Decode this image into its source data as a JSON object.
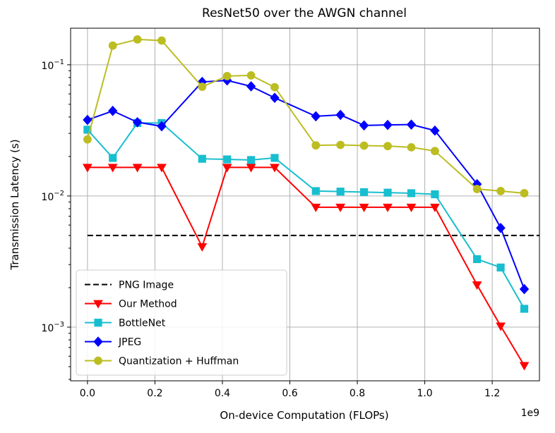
{
  "chart_data": {
    "type": "line",
    "title": "ResNet50 over the AWGN channel",
    "xlabel": "On-device Computation (FLOPs)",
    "ylabel": "Transmission Latency (s)",
    "x_scale_label": "1e9",
    "x_scale_factor": 1000000000,
    "yscale": "log",
    "xlim": [
      -0.05,
      1.34
    ],
    "ylim": [
      0.00039,
      0.19
    ],
    "x_ticks": [
      0.0,
      0.2,
      0.4,
      0.6,
      0.8,
      1.0,
      1.2
    ],
    "x_tick_labels": [
      "0.0",
      "0.2",
      "0.4",
      "0.6",
      "0.8",
      "1.0",
      "1.2"
    ],
    "y_ticks": [
      0.001,
      0.01,
      0.1
    ],
    "y_tick_labels": [
      {
        "base": "10",
        "exp": "−3"
      },
      {
        "base": "10",
        "exp": "−2"
      },
      {
        "base": "10",
        "exp": "−1"
      }
    ],
    "grid": true,
    "legend_position": "lower-left",
    "series": [
      {
        "name": "PNG Image",
        "color": "#000000",
        "style": "dashed",
        "marker": "none",
        "x": [
          0.0,
          1.34
        ],
        "y": [
          0.005,
          0.005
        ]
      },
      {
        "name": "Our Method",
        "color": "#ff0000",
        "style": "solid",
        "marker": "triangle-down",
        "x": [
          0.0,
          0.075,
          0.148,
          0.22,
          0.34,
          0.414,
          0.485,
          0.555,
          0.677,
          0.75,
          0.82,
          0.89,
          0.96,
          1.03,
          1.155,
          1.225,
          1.295
        ],
        "y": [
          0.0165,
          0.0165,
          0.0165,
          0.0165,
          0.0041,
          0.0165,
          0.0165,
          0.0165,
          0.0082,
          0.0082,
          0.0082,
          0.0082,
          0.0082,
          0.0082,
          0.0021,
          0.00102,
          0.00051
        ]
      },
      {
        "name": "BottleNet",
        "color": "#17becf",
        "style": "solid",
        "marker": "square",
        "x": [
          0.0,
          0.075,
          0.148,
          0.22,
          0.34,
          0.414,
          0.485,
          0.555,
          0.677,
          0.75,
          0.82,
          0.89,
          0.96,
          1.03,
          1.155,
          1.225,
          1.295
        ],
        "y": [
          0.032,
          0.0195,
          0.036,
          0.036,
          0.0192,
          0.019,
          0.0188,
          0.0195,
          0.0109,
          0.0108,
          0.0107,
          0.0106,
          0.0105,
          0.0103,
          0.0033,
          0.00285,
          0.00138
        ]
      },
      {
        "name": "JPEG",
        "color": "#0000ff",
        "style": "solid",
        "marker": "diamond",
        "x": [
          0.0,
          0.075,
          0.148,
          0.22,
          0.34,
          0.414,
          0.485,
          0.555,
          0.677,
          0.75,
          0.82,
          0.89,
          0.96,
          1.03,
          1.155,
          1.225,
          1.295
        ],
        "y": [
          0.038,
          0.0445,
          0.0365,
          0.034,
          0.074,
          0.076,
          0.0685,
          0.056,
          0.0405,
          0.0415,
          0.0345,
          0.0348,
          0.035,
          0.0315,
          0.0123,
          0.0057,
          0.00195
        ]
      },
      {
        "name": "Quantization + Huffman",
        "color": "#bcbd22",
        "style": "solid",
        "marker": "circle",
        "x": [
          0.0,
          0.075,
          0.148,
          0.22,
          0.34,
          0.414,
          0.485,
          0.555,
          0.677,
          0.75,
          0.82,
          0.89,
          0.96,
          1.03,
          1.155,
          1.225,
          1.295
        ],
        "y": [
          0.027,
          0.14,
          0.156,
          0.153,
          0.068,
          0.082,
          0.083,
          0.0675,
          0.0243,
          0.0245,
          0.0242,
          0.024,
          0.0235,
          0.022,
          0.0113,
          0.0109,
          0.0105
        ]
      }
    ]
  }
}
